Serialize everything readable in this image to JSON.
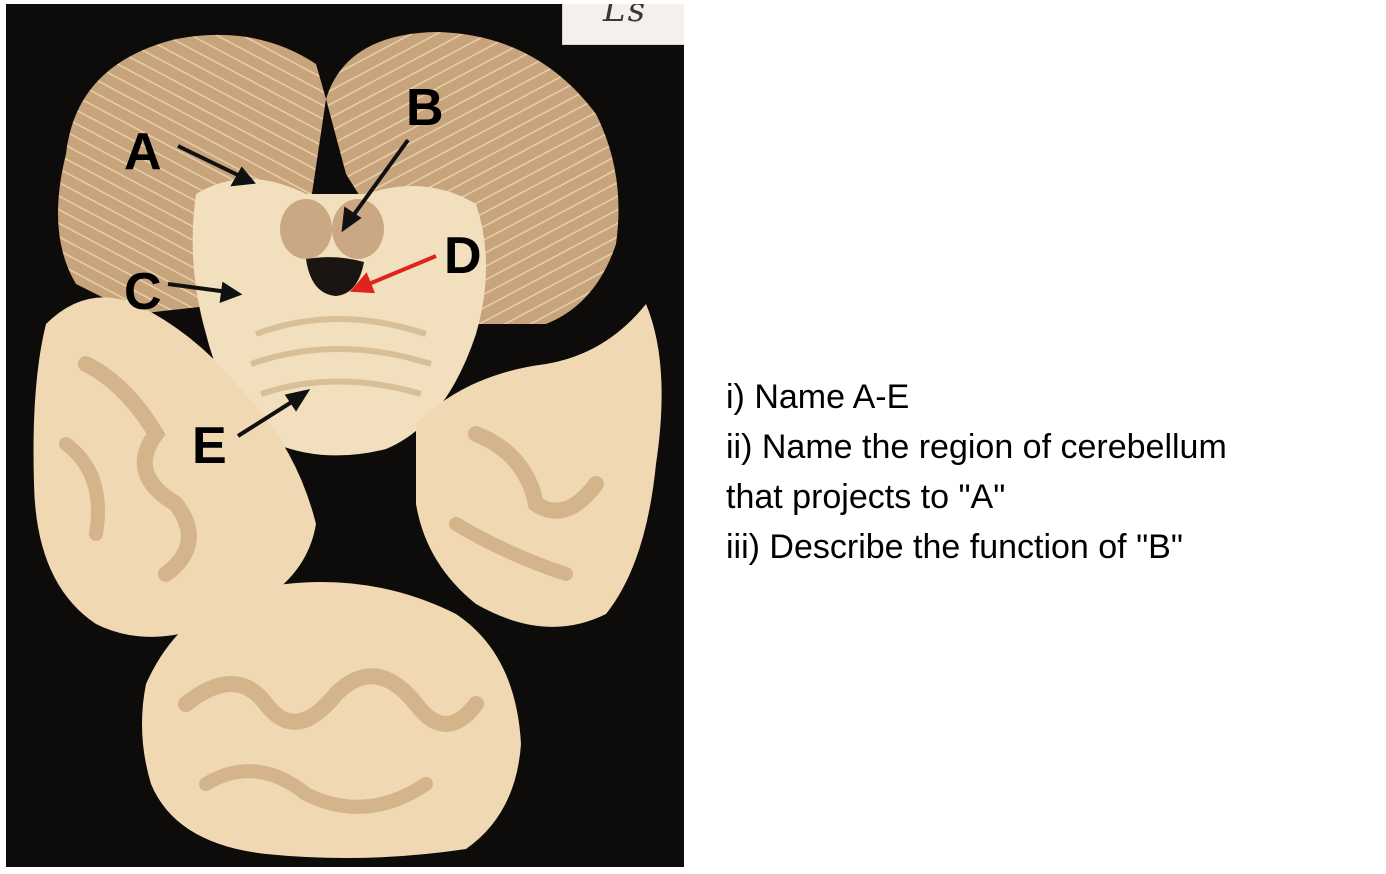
{
  "figure": {
    "labels": {
      "a": "A",
      "b": "B",
      "c": "C",
      "d": "D",
      "e": "E"
    },
    "label_colors": {
      "black_arrow": "#111111",
      "red_arrow": "#e0241b",
      "letters": "#000000"
    },
    "tissue_colors": {
      "grey_matter": "#c9a883",
      "white_matter": "#f2dfbd",
      "background": "#0e0c0b"
    },
    "handwritten_tag": "Ls"
  },
  "questions": {
    "line1": "i) Name A-E",
    "line2": "ii) Name the region of cerebellum",
    "line3": "that projects to \"A\"",
    "line4": "iii) Describe the function of \"B\""
  }
}
